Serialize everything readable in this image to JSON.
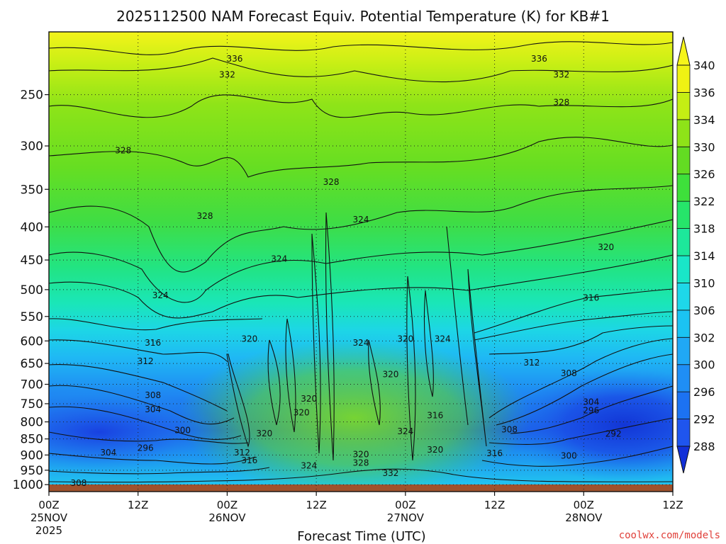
{
  "chart_data": {
    "type": "heatmap",
    "title": "2025112500 NAM Forecast Equiv. Potential Temperature (K) for KB#1",
    "xlabel": "Forecast Time (UTC)",
    "ylabel": "",
    "credit": "coolwx.com/models",
    "credit_color": "#e0403a",
    "x_ticks": [
      {
        "hour": 0,
        "label": "00Z",
        "date": "25NOV",
        "year": "2025"
      },
      {
        "hour": 12,
        "label": "12Z"
      },
      {
        "hour": 24,
        "label": "00Z",
        "date": "26NOV"
      },
      {
        "hour": 36,
        "label": "12Z"
      },
      {
        "hour": 48,
        "label": "00Z",
        "date": "27NOV"
      },
      {
        "hour": 60,
        "label": "12Z"
      },
      {
        "hour": 72,
        "label": "00Z",
        "date": "28NOV"
      },
      {
        "hour": 84,
        "label": "12Z"
      }
    ],
    "x_range_hours": [
      0,
      84
    ],
    "y_ticks": [
      250,
      300,
      350,
      400,
      450,
      500,
      550,
      600,
      650,
      700,
      750,
      800,
      850,
      900,
      950,
      1000
    ],
    "y_range_hpa": [
      200,
      1025
    ],
    "surface_pressure_hpa": 1020,
    "colorbar": {
      "levels": [
        288,
        292,
        296,
        300,
        302,
        306,
        310,
        314,
        318,
        322,
        326,
        330,
        334,
        336,
        340
      ],
      "colors": [
        "#1d3ce0",
        "#1f55ee",
        "#1c72f2",
        "#1f8ef5",
        "#20a8f6",
        "#1bc3f2",
        "#1ed8e9",
        "#19e6c8",
        "#1de89b",
        "#26e56a",
        "#3ee03b",
        "#63dc22",
        "#8ee318",
        "#c4ee14",
        "#f0f213"
      ],
      "under_color": "#1230d8",
      "over_color": "#f6f41a"
    },
    "contour_labels": [
      {
        "text": "336",
        "hour": 25,
        "p": 220
      },
      {
        "text": "336",
        "hour": 66,
        "p": 220
      },
      {
        "text": "332",
        "hour": 24,
        "p": 233
      },
      {
        "text": "332",
        "hour": 69,
        "p": 233
      },
      {
        "text": "328",
        "hour": 69,
        "p": 257
      },
      {
        "text": "328",
        "hour": 10,
        "p": 305
      },
      {
        "text": "328",
        "hour": 38,
        "p": 341
      },
      {
        "text": "328",
        "hour": 21,
        "p": 385
      },
      {
        "text": "324",
        "hour": 42,
        "p": 390
      },
      {
        "text": "324",
        "hour": 31,
        "p": 448
      },
      {
        "text": "320",
        "hour": 75,
        "p": 430
      },
      {
        "text": "324",
        "hour": 15,
        "p": 510
      },
      {
        "text": "316",
        "hour": 73,
        "p": 515
      },
      {
        "text": "316",
        "hour": 14,
        "p": 604
      },
      {
        "text": "320",
        "hour": 27,
        "p": 596
      },
      {
        "text": "324",
        "hour": 42,
        "p": 604
      },
      {
        "text": "320",
        "hour": 48,
        "p": 596
      },
      {
        "text": "324",
        "hour": 53,
        "p": 596
      },
      {
        "text": "312",
        "hour": 13,
        "p": 645
      },
      {
        "text": "312",
        "hour": 65,
        "p": 648
      },
      {
        "text": "308",
        "hour": 70,
        "p": 673
      },
      {
        "text": "320",
        "hour": 46,
        "p": 676
      },
      {
        "text": "320",
        "hour": 35,
        "p": 737
      },
      {
        "text": "308",
        "hour": 14,
        "p": 728
      },
      {
        "text": "304",
        "hour": 14,
        "p": 765
      },
      {
        "text": "320",
        "hour": 34,
        "p": 774
      },
      {
        "text": "316",
        "hour": 52,
        "p": 782
      },
      {
        "text": "304",
        "hour": 73,
        "p": 745
      },
      {
        "text": "296",
        "hour": 73,
        "p": 768
      },
      {
        "text": "300",
        "hour": 18,
        "p": 824
      },
      {
        "text": "320",
        "hour": 29,
        "p": 834
      },
      {
        "text": "324",
        "hour": 48,
        "p": 828
      },
      {
        "text": "308",
        "hour": 62,
        "p": 822
      },
      {
        "text": "292",
        "hour": 76,
        "p": 835
      },
      {
        "text": "296",
        "hour": 13,
        "p": 878
      },
      {
        "text": "304",
        "hour": 8,
        "p": 893
      },
      {
        "text": "312",
        "hour": 26,
        "p": 893
      },
      {
        "text": "320",
        "hour": 52,
        "p": 884
      },
      {
        "text": "320",
        "hour": 42,
        "p": 898
      },
      {
        "text": "300",
        "hour": 70,
        "p": 903
      },
      {
        "text": "316",
        "hour": 60,
        "p": 895
      },
      {
        "text": "316",
        "hour": 27,
        "p": 918
      },
      {
        "text": "328",
        "hour": 42,
        "p": 926
      },
      {
        "text": "324",
        "hour": 35,
        "p": 935
      },
      {
        "text": "332",
        "hour": 46,
        "p": 960
      },
      {
        "text": "308",
        "hour": 4,
        "p": 995
      }
    ]
  }
}
